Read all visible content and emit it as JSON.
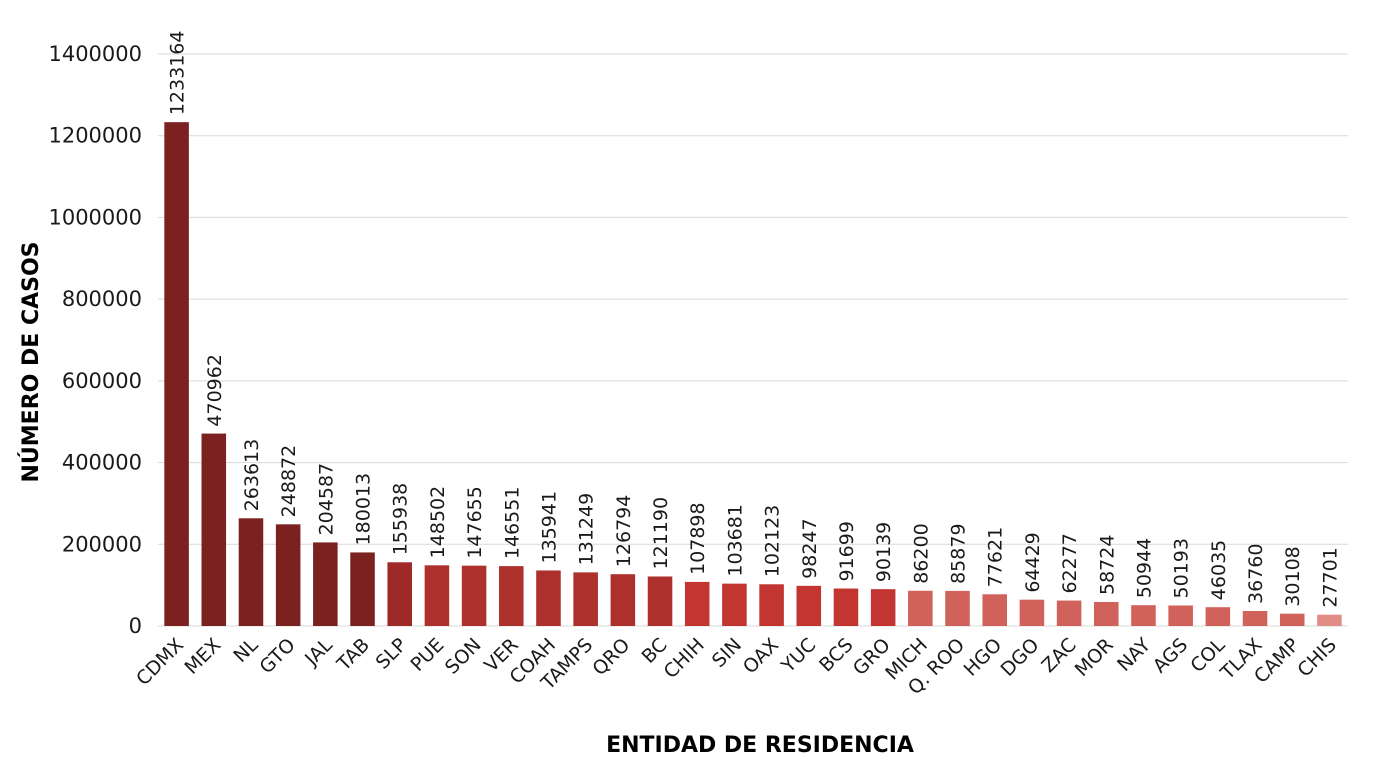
{
  "chart_data": {
    "type": "bar",
    "title": "",
    "xlabel": "ENTIDAD DE RESIDENCIA",
    "ylabel": "NÚMERO DE CASOS",
    "ylim": [
      0,
      1400000
    ],
    "yticks": [
      0,
      200000,
      400000,
      600000,
      800000,
      1000000,
      1200000,
      1400000
    ],
    "grid": true,
    "categories": [
      "CDMX",
      "MEX",
      "NL",
      "GTO",
      "JAL",
      "TAB",
      "SLP",
      "PUE",
      "SON",
      "VER",
      "COAH",
      "TAMPS",
      "QRO",
      "BC",
      "CHIH",
      "SIN",
      "OAX",
      "YUC",
      "BCS",
      "GRO",
      "MICH",
      "Q. ROO",
      "HGO",
      "DGO",
      "ZAC",
      "MOR",
      "NAY",
      "AGS",
      "COL",
      "TLAX",
      "CAMP",
      "CHIS"
    ],
    "values": [
      1233164,
      470962,
      263613,
      248872,
      204587,
      180013,
      155938,
      148502,
      147655,
      146551,
      135941,
      131249,
      126794,
      121190,
      107898,
      103681,
      102123,
      98247,
      91699,
      90139,
      86200,
      85879,
      77621,
      64429,
      62277,
      58724,
      50944,
      50193,
      46035,
      36760,
      30108,
      27701
    ],
    "colors": [
      "#7b2220",
      "#7b2220",
      "#7b2220",
      "#7b2220",
      "#7b2220",
      "#7b2220",
      "#9e2a27",
      "#ad302c",
      "#ad302c",
      "#ad302c",
      "#ad302c",
      "#ad302c",
      "#ad302c",
      "#ad302c",
      "#c23530",
      "#c23530",
      "#c23530",
      "#c23530",
      "#c23530",
      "#c23530",
      "#d0615b",
      "#d0615b",
      "#d0615b",
      "#d0615b",
      "#d0615b",
      "#d0615b",
      "#d0615b",
      "#d0615b",
      "#d0615b",
      "#d0615b",
      "#d0615b",
      "#e28c86"
    ]
  }
}
